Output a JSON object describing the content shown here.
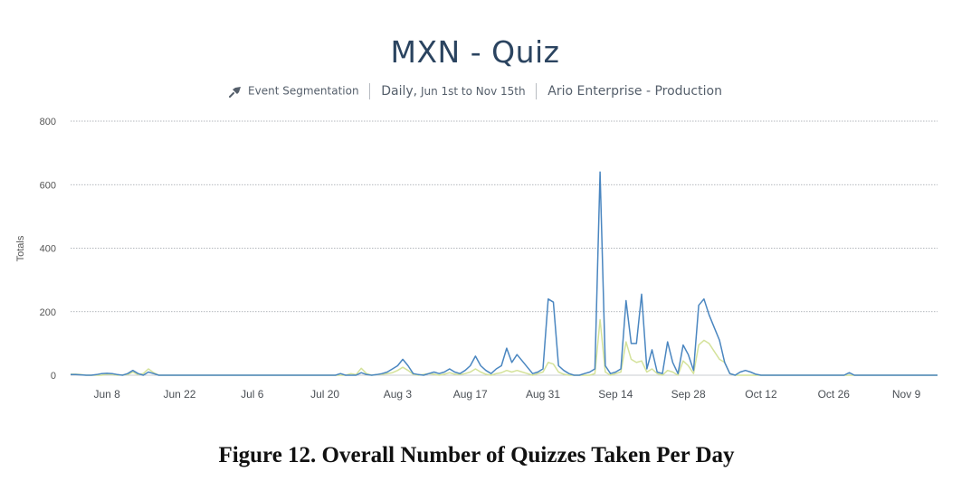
{
  "header": {
    "title": "MXN - Quiz",
    "analysis_type": "Event Segmentation",
    "range_prefix": "Daily,",
    "range_detail": "Jun 1st to Nov 15th",
    "project": "Ario Enterprise - Production"
  },
  "caption": "Figure 12. Overall Number of Quizzes Taken Per Day",
  "colors": {
    "series_blue": "#4a86c0",
    "series_yellow": "#d4e29a",
    "grid": "#9aa0a6",
    "axis_text": "#555555"
  },
  "chart_data": {
    "type": "line",
    "title": "MXN - Quiz",
    "xlabel": "",
    "ylabel": "Totals",
    "ylim": [
      0,
      800
    ],
    "yticks": [
      0,
      200,
      400,
      600,
      800
    ],
    "xlim": [
      "Jun 1",
      "Nov 15"
    ],
    "x_tick_labels": [
      "Jun 8",
      "Jun 22",
      "Jul 6",
      "Jul 20",
      "Aug 3",
      "Aug 17",
      "Aug 31",
      "Sep 14",
      "Sep 28",
      "Oct 12",
      "Oct 26",
      "Nov 9"
    ],
    "x_tick_dates": [
      "Jun 8",
      "Jun 22",
      "Jul 6",
      "Jul 20",
      "Aug 3",
      "Aug 17",
      "Aug 31",
      "Sep 14",
      "Sep 28",
      "Oct 12",
      "Oct 26",
      "Nov 9"
    ],
    "grid": true,
    "legend": "none",
    "series": [
      {
        "color": "#4a86c0",
        "points": [
          [
            "Jun 1",
            2
          ],
          [
            "Jun 2",
            2
          ],
          [
            "Jun 3",
            1
          ],
          [
            "Jun 4",
            0
          ],
          [
            "Jun 5",
            0
          ],
          [
            "Jun 6",
            2
          ],
          [
            "Jun 7",
            5
          ],
          [
            "Jun 8",
            6
          ],
          [
            "Jun 9",
            5
          ],
          [
            "Jun 10",
            2
          ],
          [
            "Jun 11",
            0
          ],
          [
            "Jun 12",
            5
          ],
          [
            "Jun 13",
            15
          ],
          [
            "Jun 14",
            5
          ],
          [
            "Jun 15",
            0
          ],
          [
            "Jun 16",
            10
          ],
          [
            "Jun 17",
            5
          ],
          [
            "Jun 18",
            0
          ],
          [
            "Jun 22",
            0
          ],
          [
            "Jul 6",
            0
          ],
          [
            "Jul 20",
            0
          ],
          [
            "Jul 22",
            0
          ],
          [
            "Jul 23",
            5
          ],
          [
            "Jul 24",
            0
          ],
          [
            "Jul 26",
            0
          ],
          [
            "Jul 27",
            8
          ],
          [
            "Jul 28",
            2
          ],
          [
            "Jul 29",
            0
          ],
          [
            "Jul 30",
            2
          ],
          [
            "Jul 31",
            5
          ],
          [
            "Aug 1",
            10
          ],
          [
            "Aug 2",
            20
          ],
          [
            "Aug 3",
            30
          ],
          [
            "Aug 4",
            50
          ],
          [
            "Aug 5",
            30
          ],
          [
            "Aug 6",
            5
          ],
          [
            "Aug 7",
            2
          ],
          [
            "Aug 8",
            0
          ],
          [
            "Aug 9",
            5
          ],
          [
            "Aug 10",
            10
          ],
          [
            "Aug 11",
            5
          ],
          [
            "Aug 12",
            10
          ],
          [
            "Aug 13",
            20
          ],
          [
            "Aug 14",
            10
          ],
          [
            "Aug 15",
            5
          ],
          [
            "Aug 16",
            15
          ],
          [
            "Aug 17",
            30
          ],
          [
            "Aug 18",
            60
          ],
          [
            "Aug 19",
            30
          ],
          [
            "Aug 20",
            15
          ],
          [
            "Aug 21",
            5
          ],
          [
            "Aug 22",
            20
          ],
          [
            "Aug 23",
            30
          ],
          [
            "Aug 24",
            85
          ],
          [
            "Aug 25",
            40
          ],
          [
            "Aug 26",
            65
          ],
          [
            "Aug 27",
            45
          ],
          [
            "Aug 28",
            25
          ],
          [
            "Aug 29",
            5
          ],
          [
            "Aug 30",
            10
          ],
          [
            "Aug 31",
            20
          ],
          [
            "Sep 1",
            240
          ],
          [
            "Sep 2",
            230
          ],
          [
            "Sep 3",
            30
          ],
          [
            "Sep 4",
            15
          ],
          [
            "Sep 5",
            5
          ],
          [
            "Sep 6",
            0
          ],
          [
            "Sep 7",
            0
          ],
          [
            "Sep 8",
            5
          ],
          [
            "Sep 9",
            10
          ],
          [
            "Sep 10",
            20
          ],
          [
            "Sep 11",
            640
          ],
          [
            "Sep 12",
            30
          ],
          [
            "Sep 13",
            5
          ],
          [
            "Sep 14",
            10
          ],
          [
            "Sep 15",
            20
          ],
          [
            "Sep 16",
            235
          ],
          [
            "Sep 17",
            100
          ],
          [
            "Sep 18",
            100
          ],
          [
            "Sep 19",
            255
          ],
          [
            "Sep 20",
            20
          ],
          [
            "Sep 21",
            80
          ],
          [
            "Sep 22",
            10
          ],
          [
            "Sep 23",
            5
          ],
          [
            "Sep 24",
            105
          ],
          [
            "Sep 25",
            40
          ],
          [
            "Sep 26",
            5
          ],
          [
            "Sep 27",
            95
          ],
          [
            "Sep 28",
            65
          ],
          [
            "Sep 29",
            15
          ],
          [
            "Sep 30",
            220
          ],
          [
            "Oct 1",
            240
          ],
          [
            "Oct 2",
            190
          ],
          [
            "Oct 3",
            150
          ],
          [
            "Oct 4",
            110
          ],
          [
            "Oct 5",
            40
          ],
          [
            "Oct 6",
            5
          ],
          [
            "Oct 7",
            0
          ],
          [
            "Oct 8",
            10
          ],
          [
            "Oct 9",
            15
          ],
          [
            "Oct 10",
            10
          ],
          [
            "Oct 11",
            3
          ],
          [
            "Oct 12",
            0
          ],
          [
            "Oct 26",
            0
          ],
          [
            "Oct 28",
            0
          ],
          [
            "Oct 29",
            8
          ],
          [
            "Oct 30",
            0
          ],
          [
            "Nov 9",
            0
          ],
          [
            "Nov 15",
            0
          ]
        ]
      },
      {
        "color": "#d4e29a",
        "points": [
          [
            "Jun 1",
            3
          ],
          [
            "Jun 2",
            3
          ],
          [
            "Jun 3",
            2
          ],
          [
            "Jun 4",
            0
          ],
          [
            "Jun 7",
            0
          ],
          [
            "Jun 8",
            3
          ],
          [
            "Jun 9",
            2
          ],
          [
            "Jun 10",
            0
          ],
          [
            "Jun 12",
            2
          ],
          [
            "Jun 13",
            10
          ],
          [
            "Jun 14",
            2
          ],
          [
            "Jun 15",
            5
          ],
          [
            "Jun 16",
            20
          ],
          [
            "Jun 17",
            8
          ],
          [
            "Jun 18",
            0
          ],
          [
            "Jun 22",
            0
          ],
          [
            "Jul 6",
            0
          ],
          [
            "Jul 20",
            0
          ],
          [
            "Jul 24",
            0
          ],
          [
            "Jul 25",
            5
          ],
          [
            "Jul 26",
            2
          ],
          [
            "Jul 27",
            22
          ],
          [
            "Jul 28",
            5
          ],
          [
            "Jul 29",
            0
          ],
          [
            "Jul 30",
            2
          ],
          [
            "Jul 31",
            3
          ],
          [
            "Aug 1",
            5
          ],
          [
            "Aug 2",
            8
          ],
          [
            "Aug 3",
            15
          ],
          [
            "Aug 4",
            25
          ],
          [
            "Aug 5",
            15
          ],
          [
            "Aug 6",
            3
          ],
          [
            "Aug 7",
            0
          ],
          [
            "Aug 9",
            5
          ],
          [
            "Aug 10",
            3
          ],
          [
            "Aug 11",
            0
          ],
          [
            "Aug 12",
            3
          ],
          [
            "Aug 13",
            8
          ],
          [
            "Aug 14",
            3
          ],
          [
            "Aug 15",
            2
          ],
          [
            "Aug 16",
            5
          ],
          [
            "Aug 17",
            10
          ],
          [
            "Aug 18",
            20
          ],
          [
            "Aug 19",
            10
          ],
          [
            "Aug 20",
            3
          ],
          [
            "Aug 21",
            0
          ],
          [
            "Aug 22",
            5
          ],
          [
            "Aug 23",
            8
          ],
          [
            "Aug 24",
            15
          ],
          [
            "Aug 25",
            10
          ],
          [
            "Aug 26",
            15
          ],
          [
            "Aug 27",
            10
          ],
          [
            "Aug 28",
            5
          ],
          [
            "Aug 29",
            0
          ],
          [
            "Aug 30",
            5
          ],
          [
            "Aug 31",
            10
          ],
          [
            "Sep 1",
            40
          ],
          [
            "Sep 2",
            35
          ],
          [
            "Sep 3",
            10
          ],
          [
            "Sep 4",
            3
          ],
          [
            "Sep 5",
            0
          ],
          [
            "Sep 9",
            0
          ],
          [
            "Sep 10",
            5
          ],
          [
            "Sep 11",
            175
          ],
          [
            "Sep 12",
            10
          ],
          [
            "Sep 13",
            0
          ],
          [
            "Sep 14",
            5
          ],
          [
            "Sep 15",
            10
          ],
          [
            "Sep 16",
            105
          ],
          [
            "Sep 17",
            50
          ],
          [
            "Sep 18",
            40
          ],
          [
            "Sep 19",
            45
          ],
          [
            "Sep 20",
            10
          ],
          [
            "Sep 21",
            20
          ],
          [
            "Sep 22",
            5
          ],
          [
            "Sep 23",
            0
          ],
          [
            "Sep 24",
            15
          ],
          [
            "Sep 25",
            10
          ],
          [
            "Sep 26",
            0
          ],
          [
            "Sep 27",
            45
          ],
          [
            "Sep 28",
            30
          ],
          [
            "Sep 29",
            5
          ],
          [
            "Sep 30",
            95
          ],
          [
            "Oct 1",
            110
          ],
          [
            "Oct 2",
            100
          ],
          [
            "Oct 3",
            75
          ],
          [
            "Oct 4",
            50
          ],
          [
            "Oct 5",
            40
          ],
          [
            "Oct 6",
            5
          ],
          [
            "Oct 7",
            0
          ],
          [
            "Oct 12",
            0
          ],
          [
            "Nov 15",
            0
          ]
        ]
      }
    ]
  }
}
